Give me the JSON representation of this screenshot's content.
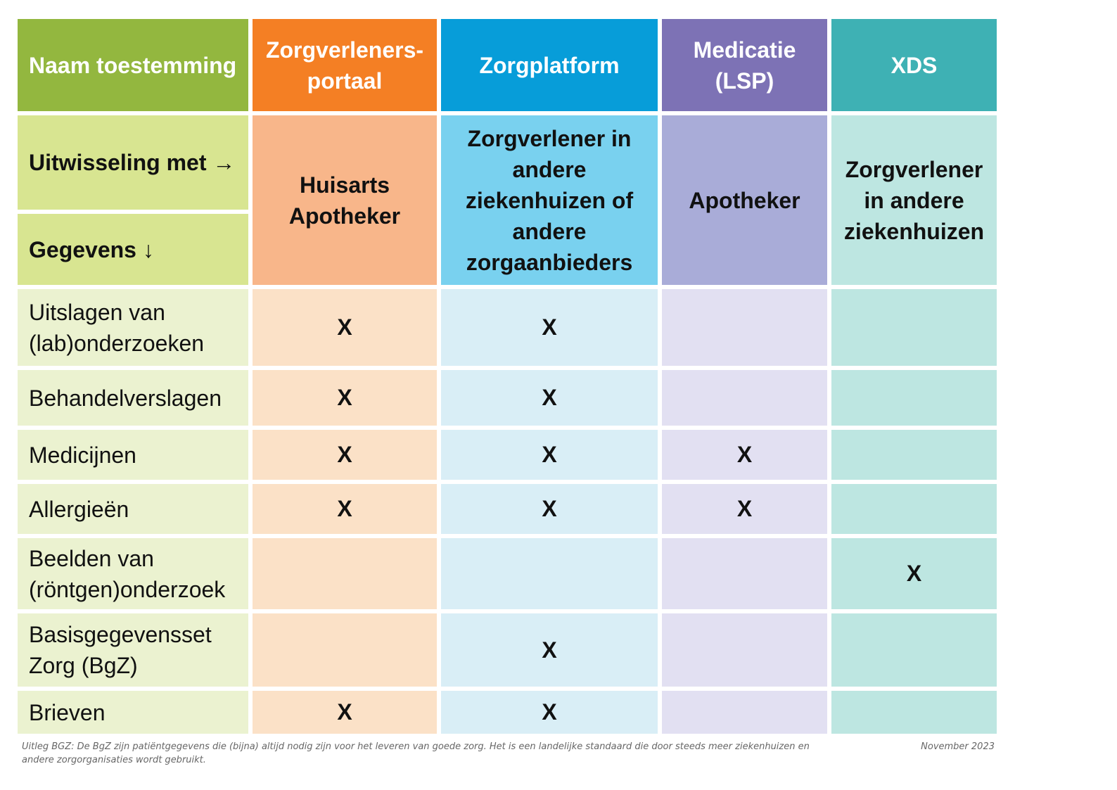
{
  "colors": {
    "header": [
      "#93b73f",
      "#f47f24",
      "#079dd9",
      "#7d72b5",
      "#3eb1b4"
    ],
    "subheader": [
      "#d8e591",
      "#f8b68a",
      "#79d1ef",
      "#a9acd8",
      "#bde6e1"
    ],
    "body": [
      "#ebf2d0",
      "#fbe1c7",
      "#d9eef6",
      "#e2e0f2",
      "#bde6e1"
    ]
  },
  "header": {
    "naam": "Naam toestemming",
    "columns": [
      "Zorgverleners-portaal",
      "Zorgplatform",
      "Medicatie (LSP)",
      "XDS"
    ]
  },
  "subheader": {
    "uitwisseling": "Uitwisseling met →",
    "gegevens": "Gegevens ↓",
    "columns": [
      "Huisarts Apotheker",
      "Zorgverlener in andere ziekenhuizen of andere zorgaanbieders",
      "Apotheker",
      "Zorgverlener in andere ziekenhuizen"
    ]
  },
  "rows": [
    {
      "label": "Uitslagen van (lab)onderzoeken",
      "marks": [
        "X",
        "X",
        "",
        ""
      ]
    },
    {
      "label": "Behandelverslagen",
      "marks": [
        "X",
        "X",
        "",
        ""
      ]
    },
    {
      "label": "Medicijnen",
      "marks": [
        "X",
        "X",
        "X",
        ""
      ]
    },
    {
      "label": "Allergieën",
      "marks": [
        "X",
        "X",
        "X",
        ""
      ]
    },
    {
      "label": "Beelden van (röntgen)onderzoek",
      "marks": [
        "",
        "",
        "",
        "X"
      ]
    },
    {
      "label": "Basisgegevensset Zorg (BgZ)",
      "marks": [
        "",
        "X",
        "",
        ""
      ]
    },
    {
      "label": "Brieven",
      "marks": [
        "X",
        "X",
        "",
        ""
      ]
    }
  ],
  "footer": {
    "note": "Uitleg BGZ: De BgZ zijn patiëntgegevens die (bijna) altijd nodig zijn voor het leveren van goede zorg. Het is een landelijke standaard die door steeds meer ziekenhuizen en andere zorgorganisaties wordt gebruikt.",
    "date": "November 2023"
  }
}
